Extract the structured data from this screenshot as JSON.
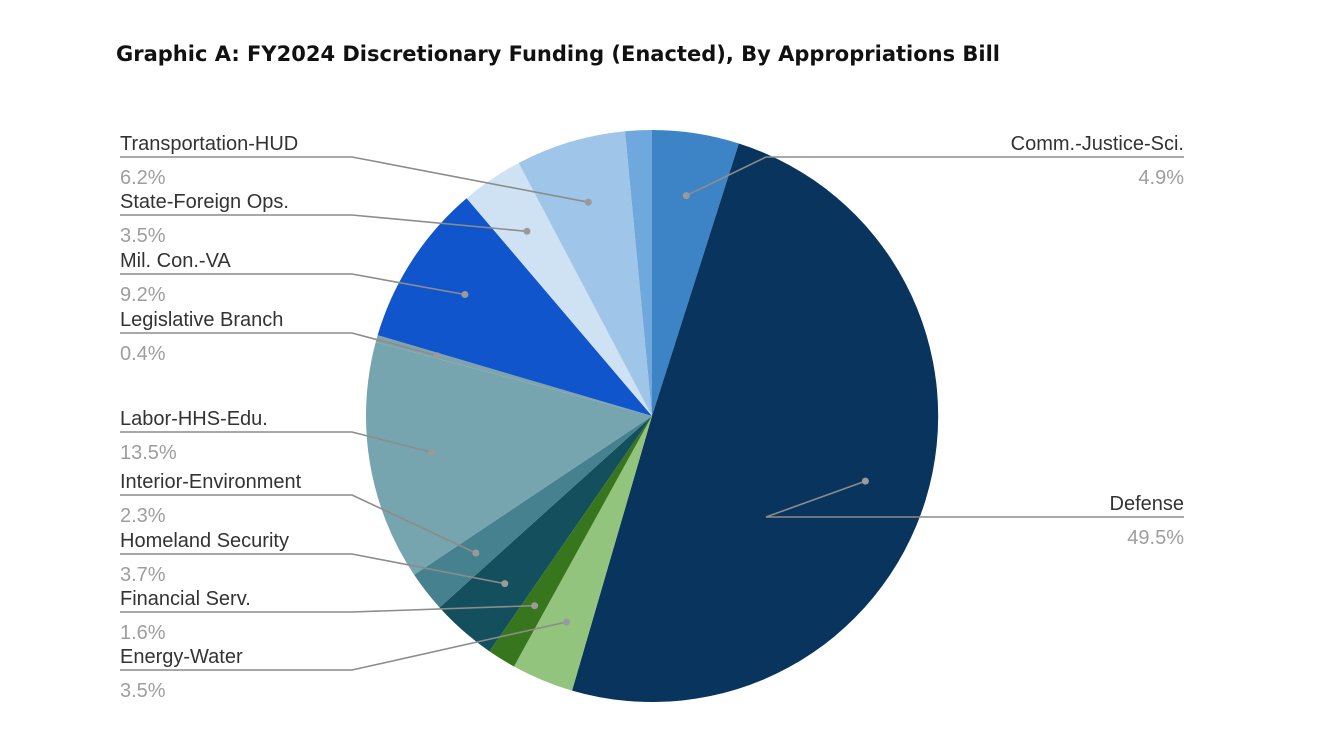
{
  "chart_data": {
    "type": "pie",
    "title": "Graphic A: FY2024 Discretionary Funding (Enacted), By Appropriations Bill",
    "start_angle_deg": 0,
    "direction": "clockwise",
    "slices": [
      {
        "label": "Comm.-Justice-Sci.",
        "value": 4.9,
        "display": "4.9%",
        "color": "#3d84c6",
        "label_side": "right"
      },
      {
        "label": "Defense",
        "value": 49.5,
        "display": "49.5%",
        "color": "#08345e",
        "label_side": "right"
      },
      {
        "label": "Energy-Water",
        "value": 3.5,
        "display": "3.5%",
        "color": "#93c47d",
        "label_side": "left"
      },
      {
        "label": "Financial Serv.",
        "value": 1.6,
        "display": "1.6%",
        "color": "#38761d",
        "label_side": "left"
      },
      {
        "label": "Homeland Security",
        "value": 3.7,
        "display": "3.7%",
        "color": "#134f5c",
        "label_side": "left"
      },
      {
        "label": "Interior-Environment",
        "value": 2.3,
        "display": "2.3%",
        "color": "#45818e",
        "label_side": "left"
      },
      {
        "label": "Labor-HHS-Edu.",
        "value": 13.5,
        "display": "13.5%",
        "color": "#76a5af",
        "label_side": "left"
      },
      {
        "label": "Legislative Branch",
        "value": 0.4,
        "display": "0.4%",
        "color": "#7fa3ab",
        "label_side": "left"
      },
      {
        "label": "Mil. Con.-VA",
        "value": 9.2,
        "display": "9.2%",
        "color": "#1155cc",
        "label_side": "left"
      },
      {
        "label": "State-Foreign Ops.",
        "value": 3.5,
        "display": "3.5%",
        "color": "#cfe2f3",
        "label_side": "left"
      },
      {
        "label": "Transportation-HUD",
        "value": 6.2,
        "display": "6.2%",
        "color": "#9fc5e8",
        "label_side": "left"
      },
      {
        "label": "",
        "value": 1.5,
        "display": "",
        "color": "#6fa8dc",
        "label_side": "none"
      }
    ]
  }
}
